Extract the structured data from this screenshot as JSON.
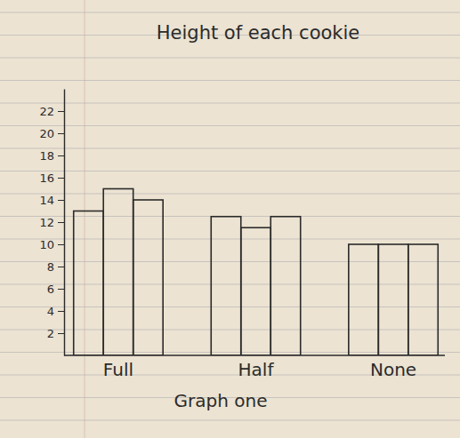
{
  "chart_data": {
    "type": "bar",
    "title": "Height of each cookie",
    "x_label": "Graph one",
    "categories": [
      "Full",
      "Half",
      "None"
    ],
    "series": [
      {
        "values": [
          13,
          12.5,
          10
        ]
      },
      {
        "values": [
          15,
          11.5,
          10
        ]
      },
      {
        "values": [
          14,
          12.5,
          10
        ]
      }
    ],
    "color": "#2b2b2b",
    "ylim": [
      0,
      24
    ],
    "yticks": [
      2,
      4,
      6,
      8,
      10,
      12,
      14,
      16,
      18,
      20,
      22
    ],
    "grid": false
  }
}
